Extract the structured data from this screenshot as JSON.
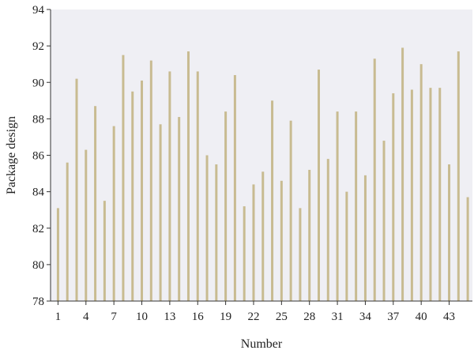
{
  "chart_data": {
    "type": "bar",
    "title": "",
    "xlabel": "Number",
    "ylabel": "Package design",
    "ylim": [
      78,
      94
    ],
    "yticks": [
      78,
      80,
      82,
      84,
      86,
      88,
      90,
      92,
      94
    ],
    "xticks": [
      1,
      4,
      7,
      10,
      13,
      16,
      19,
      22,
      25,
      28,
      31,
      34,
      37,
      40,
      43
    ],
    "x": [
      1,
      2,
      3,
      4,
      5,
      6,
      7,
      8,
      9,
      10,
      11,
      12,
      13,
      14,
      15,
      16,
      17,
      18,
      19,
      20,
      21,
      22,
      23,
      24,
      25,
      26,
      27,
      28,
      29,
      30,
      31,
      32,
      33,
      34,
      35,
      36,
      37,
      38,
      39,
      40,
      41,
      42,
      43,
      44,
      45
    ],
    "values": [
      83.1,
      85.6,
      90.2,
      86.3,
      88.7,
      83.5,
      87.6,
      91.5,
      89.5,
      90.1,
      91.2,
      87.7,
      90.6,
      88.1,
      91.7,
      90.6,
      86.0,
      85.5,
      88.4,
      90.4,
      83.2,
      84.4,
      85.1,
      89.0,
      84.6,
      87.9,
      83.1,
      85.2,
      90.7,
      85.8,
      88.4,
      84.0,
      88.4,
      84.9,
      91.3,
      86.8,
      89.4,
      91.9,
      89.6,
      91.0,
      89.7,
      89.7,
      85.5,
      91.7,
      83.7
    ],
    "grid": false,
    "colors": {
      "bar": "#c8bb91",
      "plot_background": "#efeff4",
      "axis": "#333333"
    }
  }
}
